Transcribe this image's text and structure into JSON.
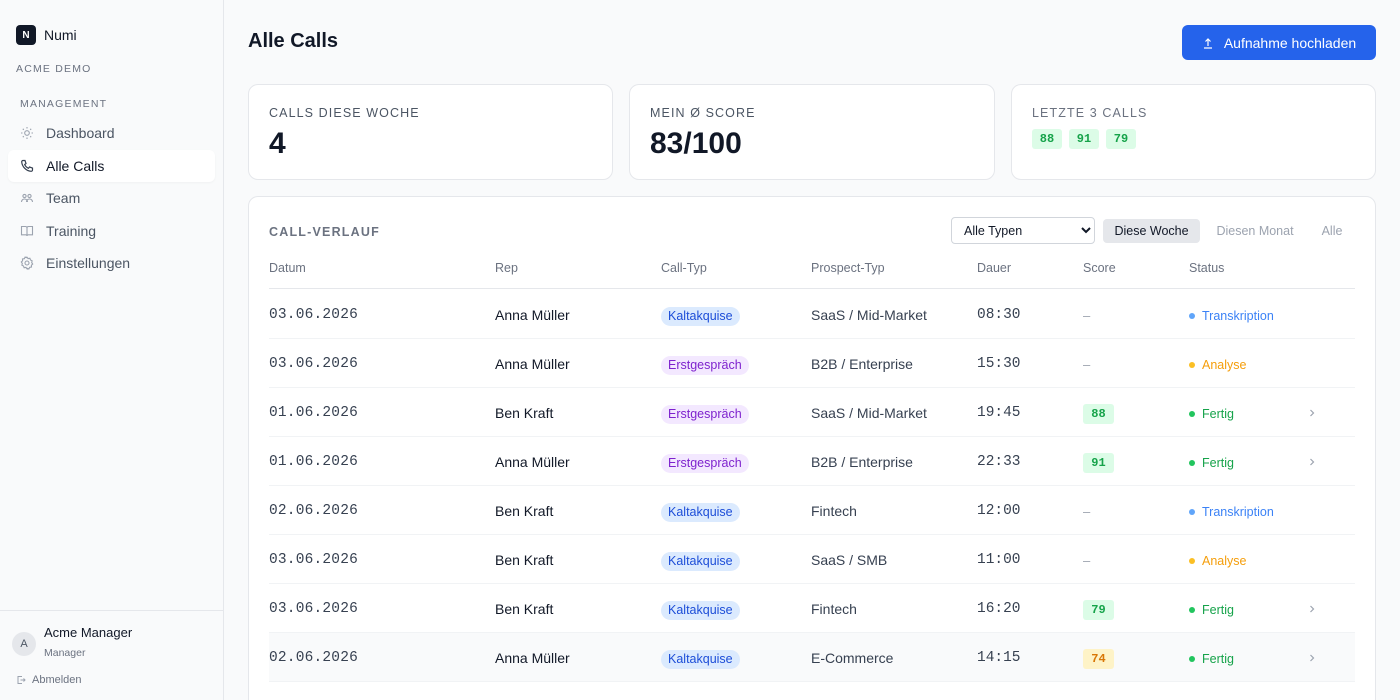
{
  "brand": {
    "logo_letter": "N",
    "name": "Numi",
    "org": "ACME DEMO"
  },
  "sidebar": {
    "section_label": "MANAGEMENT",
    "items": [
      {
        "label": "Dashboard",
        "icon": "sun-icon",
        "active": false
      },
      {
        "label": "Alle Calls",
        "icon": "phone-icon",
        "active": true
      },
      {
        "label": "Team",
        "icon": "users-icon",
        "active": false
      },
      {
        "label": "Training",
        "icon": "book-icon",
        "active": false
      },
      {
        "label": "Einstellungen",
        "icon": "gear-icon",
        "active": false
      }
    ],
    "user": {
      "initial": "A",
      "name": "Acme Manager",
      "role": "Manager"
    },
    "logout_label": "Abmelden"
  },
  "header": {
    "title": "Alle Calls",
    "upload_label": "Aufnahme hochladen"
  },
  "stats": {
    "calls_week": {
      "label": "CALLS DIESE WOCHE",
      "value": "4"
    },
    "avg_score": {
      "label": "MEIN Ø SCORE",
      "value": "83/100"
    },
    "last_calls": {
      "label": "LETZTE 3 CALLS",
      "scores": [
        "88",
        "91",
        "79"
      ]
    }
  },
  "history": {
    "title": "CALL-VERLAUF",
    "type_filter": {
      "selected": "Alle Typen"
    },
    "period_filters": [
      "Diese Woche",
      "Diesen Monat",
      "Alle"
    ],
    "active_period": "Diese Woche",
    "columns": [
      "Datum",
      "Rep",
      "Call-Typ",
      "Prospect-Typ",
      "Dauer",
      "Score",
      "Status"
    ],
    "rows": [
      {
        "date": "03.06.2026",
        "rep": "Anna Müller",
        "call_type": "Kaltakquise",
        "prospect": "SaaS / Mid-Market",
        "duration": "08:30",
        "score": "–",
        "status": "Transkription"
      },
      {
        "date": "03.06.2026",
        "rep": "Anna Müller",
        "call_type": "Erstgespräch",
        "prospect": "B2B / Enterprise",
        "duration": "15:30",
        "score": "–",
        "status": "Analyse"
      },
      {
        "date": "01.06.2026",
        "rep": "Ben Kraft",
        "call_type": "Erstgespräch",
        "prospect": "SaaS / Mid-Market",
        "duration": "19:45",
        "score": "88",
        "status": "Fertig"
      },
      {
        "date": "01.06.2026",
        "rep": "Anna Müller",
        "call_type": "Erstgespräch",
        "prospect": "B2B / Enterprise",
        "duration": "22:33",
        "score": "91",
        "status": "Fertig"
      },
      {
        "date": "02.06.2026",
        "rep": "Ben Kraft",
        "call_type": "Kaltakquise",
        "prospect": "Fintech",
        "duration": "12:00",
        "score": "–",
        "status": "Transkription"
      },
      {
        "date": "03.06.2026",
        "rep": "Ben Kraft",
        "call_type": "Kaltakquise",
        "prospect": "SaaS / SMB",
        "duration": "11:00",
        "score": "–",
        "status": "Analyse"
      },
      {
        "date": "03.06.2026",
        "rep": "Ben Kraft",
        "call_type": "Kaltakquise",
        "prospect": "Fintech",
        "duration": "16:20",
        "score": "79",
        "status": "Fertig"
      },
      {
        "date": "02.06.2026",
        "rep": "Anna Müller",
        "call_type": "Kaltakquise",
        "prospect": "E-Commerce",
        "duration": "14:15",
        "score": "74",
        "status": "Fertig"
      }
    ]
  },
  "colors": {
    "accent": "#2563eb",
    "success": "#16a34a",
    "warning": "#f59e0b",
    "info": "#3b82f6"
  }
}
